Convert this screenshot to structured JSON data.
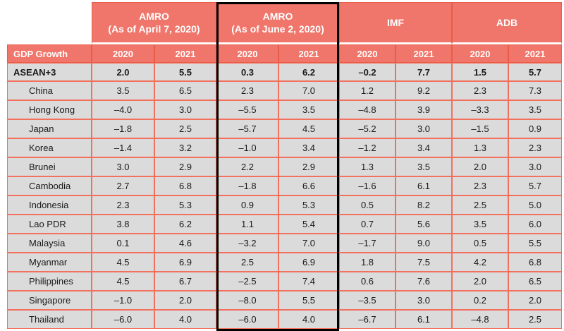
{
  "table_header": {
    "row_label": "GDP Growth"
  },
  "colors": {
    "header_fill": "#F0756A",
    "header_divider": "#E95D48",
    "grid_line": "#F2705C",
    "row_fill": "#DBDBDB",
    "highlight_border": "#000000",
    "header_text": "#FFFFFF",
    "body_text": "#1A1A1A"
  },
  "chart_data": {
    "type": "table",
    "title": "GDP Growth",
    "years": [
      "2020",
      "2021"
    ],
    "column_groups": [
      {
        "label": "AMRO",
        "sublabel": "(As of April 7, 2020)",
        "highlighted": false
      },
      {
        "label": "AMRO",
        "sublabel": "(As of June 2, 2020)",
        "highlighted": true
      },
      {
        "label": "IMF",
        "sublabel": "",
        "highlighted": false
      },
      {
        "label": "ADB",
        "sublabel": "",
        "highlighted": false
      }
    ],
    "rows": [
      {
        "label": "ASEAN+3",
        "bold": true,
        "values": [
          2.0,
          5.5,
          0.3,
          6.2,
          -0.2,
          7.7,
          1.5,
          5.7
        ]
      },
      {
        "label": "China",
        "bold": false,
        "values": [
          3.5,
          6.5,
          2.3,
          7.0,
          1.2,
          9.2,
          2.3,
          7.3
        ]
      },
      {
        "label": "Hong Kong",
        "bold": false,
        "values": [
          -4.0,
          3.0,
          -5.5,
          3.5,
          -4.8,
          3.9,
          -3.3,
          3.5
        ]
      },
      {
        "label": "Japan",
        "bold": false,
        "values": [
          -1.8,
          2.5,
          -5.7,
          4.5,
          -5.2,
          3.0,
          -1.5,
          0.9
        ]
      },
      {
        "label": "Korea",
        "bold": false,
        "values": [
          -1.4,
          3.2,
          -1.0,
          3.4,
          -1.2,
          3.4,
          1.3,
          2.3
        ]
      },
      {
        "label": "Brunei",
        "bold": false,
        "values": [
          3.0,
          2.9,
          2.2,
          2.9,
          1.3,
          3.5,
          2.0,
          3.0
        ]
      },
      {
        "label": "Cambodia",
        "bold": false,
        "values": [
          2.7,
          6.8,
          -1.8,
          6.6,
          -1.6,
          6.1,
          2.3,
          5.7
        ]
      },
      {
        "label": "Indonesia",
        "bold": false,
        "values": [
          2.3,
          5.3,
          0.9,
          5.3,
          0.5,
          8.2,
          2.5,
          5.0
        ]
      },
      {
        "label": "Lao PDR",
        "bold": false,
        "values": [
          3.8,
          6.2,
          1.1,
          5.4,
          0.7,
          5.6,
          3.5,
          6.0
        ]
      },
      {
        "label": "Malaysia",
        "bold": false,
        "values": [
          0.1,
          4.6,
          -3.2,
          7.0,
          -1.7,
          9.0,
          0.5,
          5.5
        ]
      },
      {
        "label": "Myanmar",
        "bold": false,
        "values": [
          4.5,
          6.9,
          2.5,
          6.9,
          1.8,
          7.5,
          4.2,
          6.8
        ]
      },
      {
        "label": "Philippines",
        "bold": false,
        "values": [
          4.5,
          6.7,
          -2.5,
          7.4,
          0.6,
          7.6,
          2.0,
          6.5
        ]
      },
      {
        "label": "Singapore",
        "bold": false,
        "values": [
          -1.0,
          2.0,
          -8.0,
          5.5,
          -3.5,
          3.0,
          0.2,
          2.0
        ]
      },
      {
        "label": "Thailand",
        "bold": false,
        "values": [
          -6.0,
          4.0,
          -6.0,
          4.0,
          -6.7,
          6.1,
          -4.8,
          2.5
        ]
      }
    ]
  }
}
